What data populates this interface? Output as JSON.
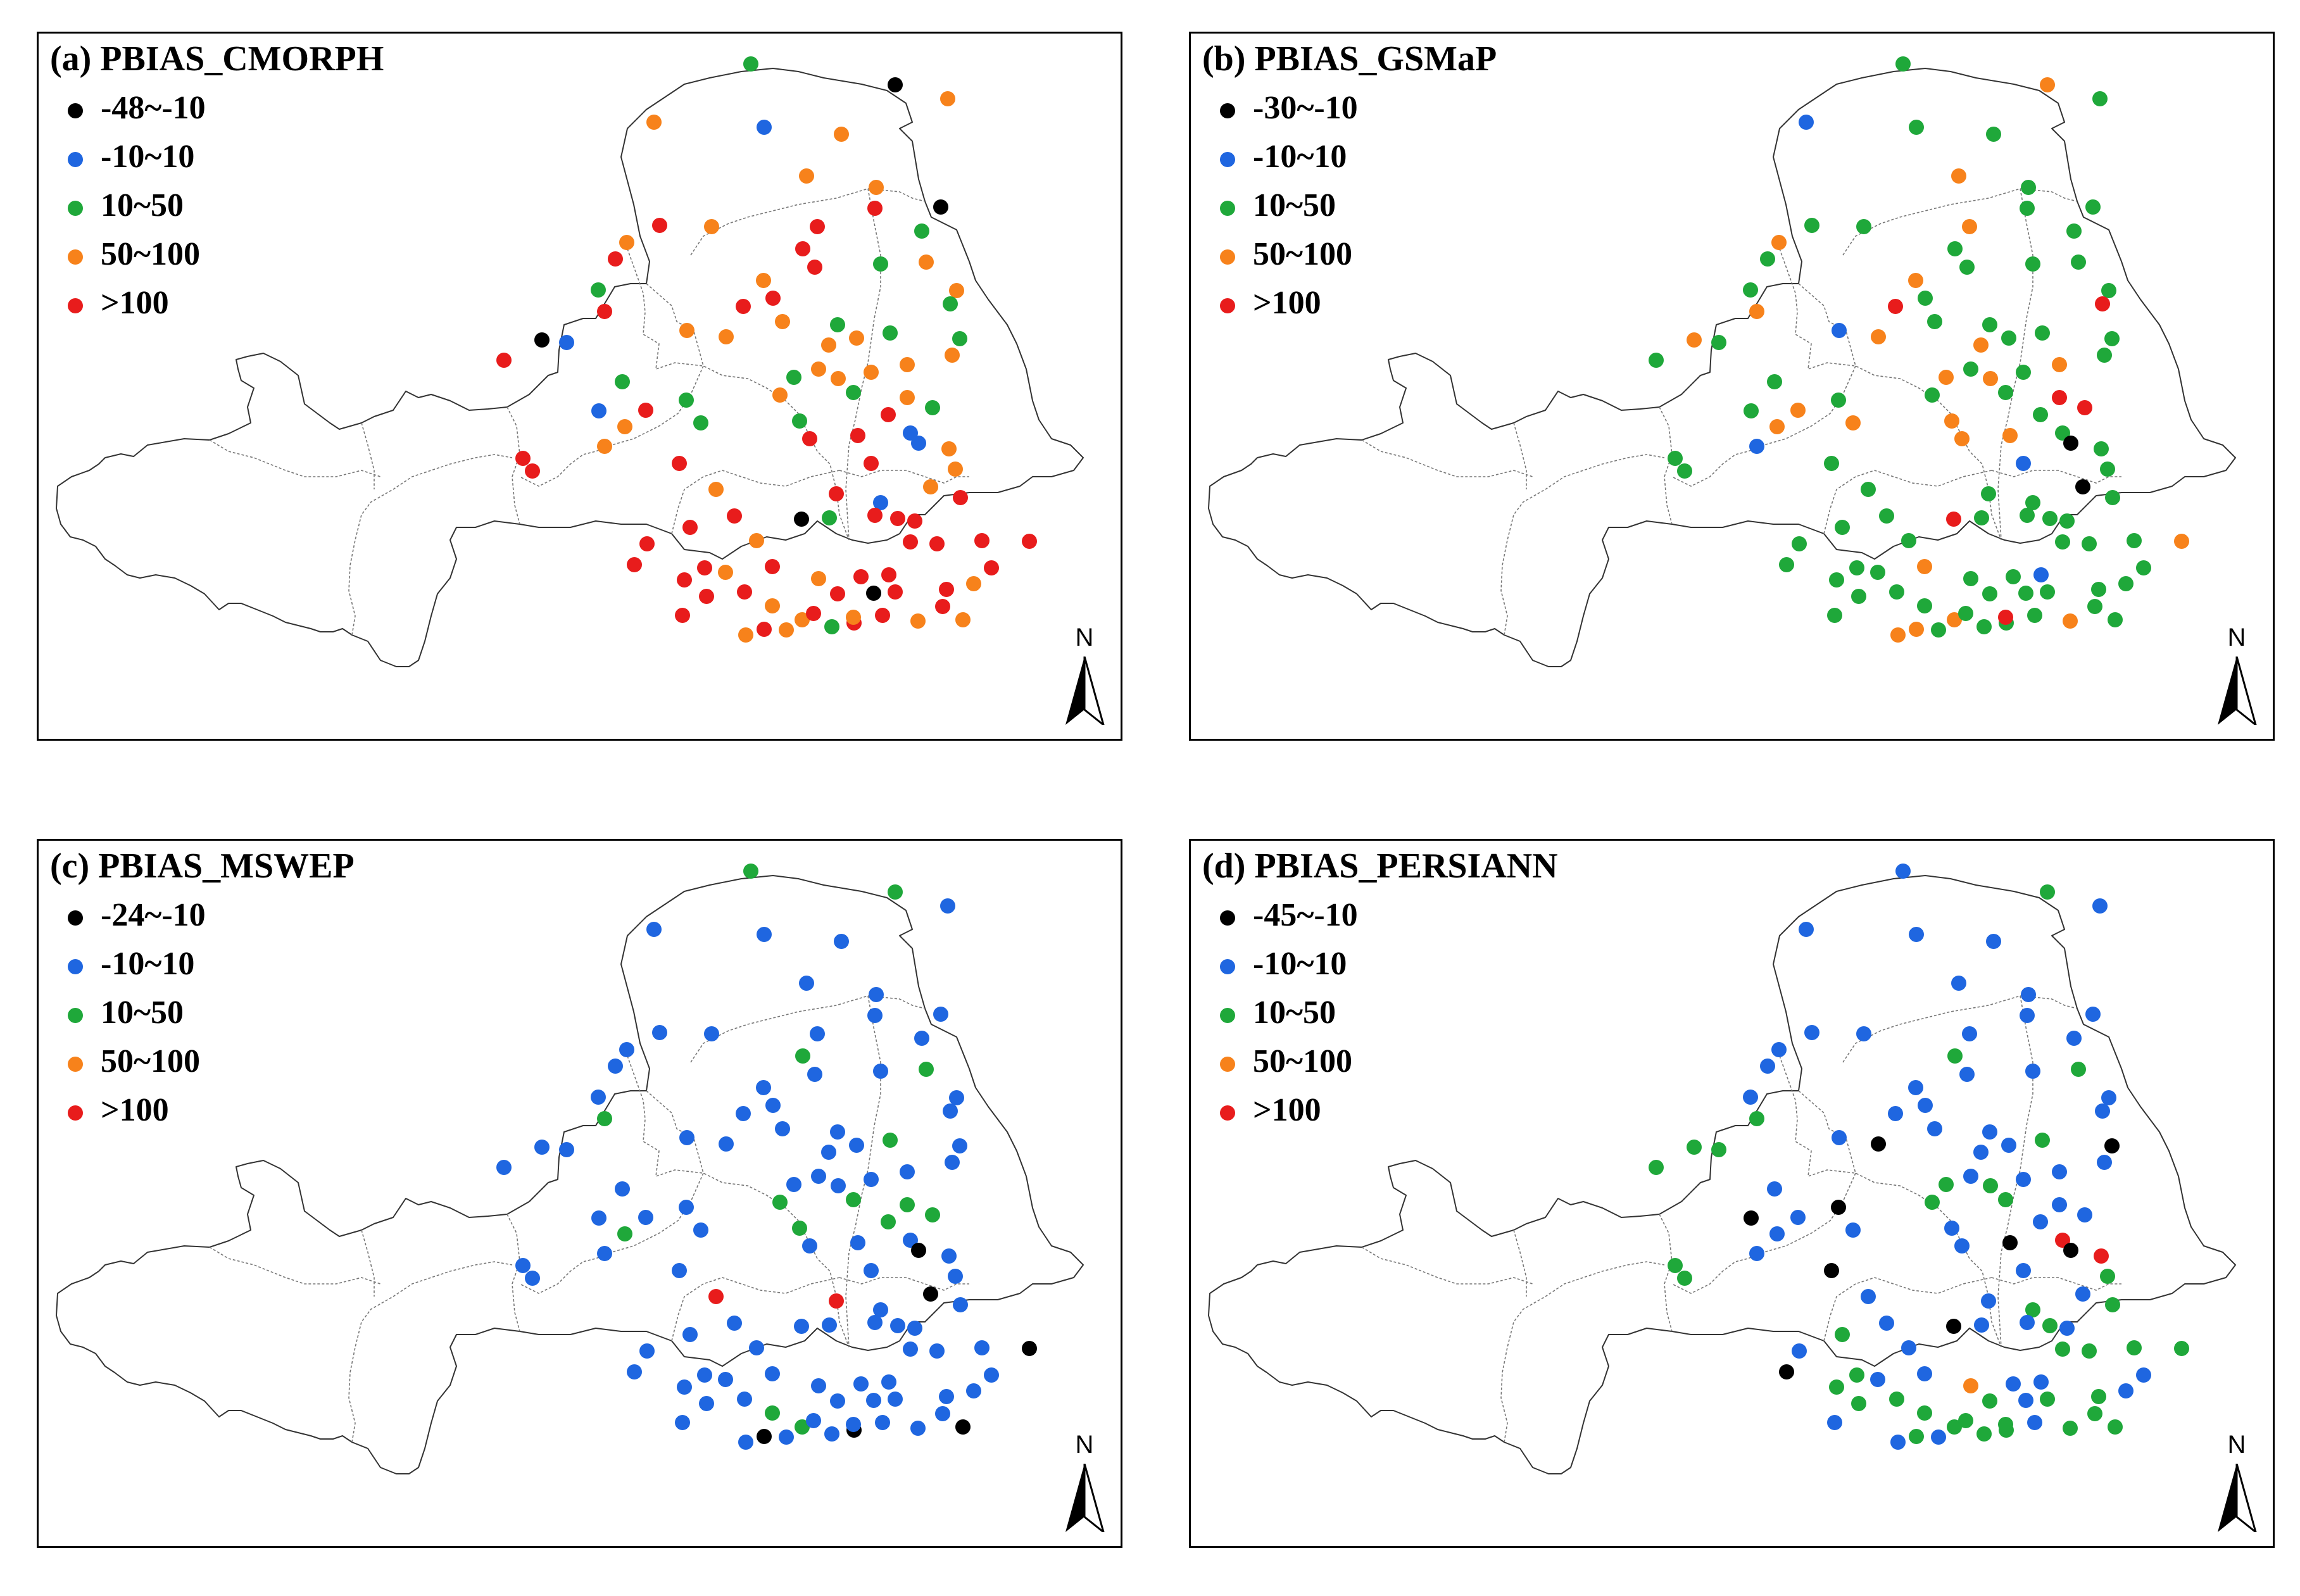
{
  "colors": {
    "black": "#000000",
    "blue": "#1f66e0",
    "green": "#1fa83a",
    "orange": "#f7821b",
    "red": "#e81c1c"
  },
  "north_label": "N",
  "panels": [
    {
      "title": "(a) PBIAS_CMORPH",
      "legend": [
        {
          "label": "-48~-10",
          "color": "black"
        },
        {
          "label": "-10~10",
          "color": "blue"
        },
        {
          "label": "10~50",
          "color": "green"
        },
        {
          "label": "50~100",
          "color": "orange"
        },
        {
          "label": ">100",
          "color": "red"
        }
      ]
    },
    {
      "title": "(b) PBIAS_GSMaP",
      "legend": [
        {
          "label": "-30~-10",
          "color": "black"
        },
        {
          "label": "-10~10",
          "color": "blue"
        },
        {
          "label": "10~50",
          "color": "green"
        },
        {
          "label": "50~100",
          "color": "orange"
        },
        {
          "label": ">100",
          "color": "red"
        }
      ]
    },
    {
      "title": "(c) PBIAS_MSWEP",
      "legend": [
        {
          "label": "-24~-10",
          "color": "black"
        },
        {
          "label": "-10~10",
          "color": "blue"
        },
        {
          "label": "10~50",
          "color": "green"
        },
        {
          "label": "50~100",
          "color": "orange"
        },
        {
          "label": ">100",
          "color": "red"
        }
      ]
    },
    {
      "title": "(d) PBIAS_PERSIANN",
      "legend": [
        {
          "label": "-45~-10",
          "color": "black"
        },
        {
          "label": "-10~10",
          "color": "blue"
        },
        {
          "label": "10~50",
          "color": "green"
        },
        {
          "label": "50~100",
          "color": "orange"
        },
        {
          "label": ">100",
          "color": "red"
        }
      ]
    }
  ],
  "station_classes": {
    "a": "GKOOBOOOGKRROROROOGRRORROGGGOGROOOGOOKBOOGOGROGRGOGBOGRRRBOBOGRORRROROBRRRKGRRRRORRRRRRORRRRORKRROROOGRRRRRROOROOROOOO",
    "b": "GOGBGGOGGGGGGOOGGOGGGGGRGRGGGGOBOOGGOOGGGOOGGGGOGRRGOOGOOGGKBOBGGGGGGKGGGGRGGGGGGGGGOGOGBGGGGGGGGGGOGGGGGGGOOGGROGGOO",
    "c": "GGBBBBBBBBBBBBBGGBBBBBBBBBBBBGGBBBBBBBBBBBBBBGGBBGGBGGGBBBBKBBBBBBBRRKBBBBBBBBBBBBBBKBBBBBBBBBBBBBBGGBKBBBBKBBBBBBKBBB",
    "d": "BGBBBBBBBBBBBBBGGBBBBBBBBBBBBGGBKBKBBGGBBGGBGGGBKBBKBBBBKRRKBBBGGGKBBBGGGBKBBBGBBGGGGGBOBBKGBGBGGBBGGGGGGGBGBBBGGGGGG"
  }
}
